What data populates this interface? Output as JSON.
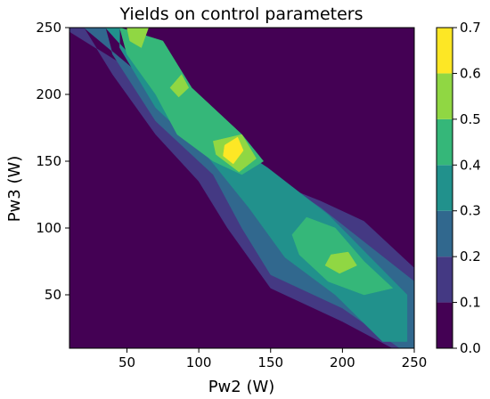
{
  "chart_data": {
    "type": "contourf",
    "title": "Yields on control parameters",
    "xlabel": "Pw2 (W)",
    "ylabel": "Pw3 (W)",
    "xlim": [
      10,
      250
    ],
    "ylim": [
      10,
      250
    ],
    "xticks": [
      50,
      100,
      150,
      200,
      250
    ],
    "yticks": [
      50,
      100,
      150,
      200,
      250
    ],
    "colorbar": {
      "levels": [
        0.0,
        0.1,
        0.2,
        0.3,
        0.4,
        0.5,
        0.6,
        0.7
      ],
      "tick_labels": [
        "0.0",
        "0.1",
        "0.2",
        "0.3",
        "0.4",
        "0.5",
        "0.6",
        "0.7"
      ],
      "colors": [
        "#440154",
        "#443983",
        "#31688e",
        "#21918c",
        "#35b779",
        "#90d743",
        "#fde725"
      ]
    },
    "regions": [
      {
        "level": 1,
        "points": [
          [
            10,
            250
          ],
          [
            10,
            247
          ],
          [
            80,
            200
          ],
          [
            150,
            135
          ],
          [
            185,
            120
          ],
          [
            215,
            105
          ],
          [
            250,
            70
          ],
          [
            250,
            10
          ],
          [
            235,
            10
          ],
          [
            200,
            30
          ],
          [
            150,
            55
          ],
          [
            120,
            100
          ],
          [
            100,
            135
          ],
          [
            70,
            170
          ],
          [
            40,
            215
          ],
          [
            20,
            250
          ]
        ]
      },
      {
        "level": 2,
        "points": [
          [
            20,
            250
          ],
          [
            70,
            205
          ],
          [
            150,
            140
          ],
          [
            185,
            115
          ],
          [
            250,
            60
          ],
          [
            250,
            10
          ],
          [
            240,
            10
          ],
          [
            200,
            40
          ],
          [
            150,
            65
          ],
          [
            130,
            100
          ],
          [
            110,
            140
          ],
          [
            70,
            180
          ],
          [
            40,
            230
          ],
          [
            35,
            250
          ]
        ]
      },
      {
        "level": 3,
        "points": [
          [
            35,
            250
          ],
          [
            85,
            190
          ],
          [
            148,
            145
          ],
          [
            190,
            110
          ],
          [
            245,
            50
          ],
          [
            245,
            15
          ],
          [
            228,
            15
          ],
          [
            195,
            50
          ],
          [
            160,
            78
          ],
          [
            135,
            115
          ],
          [
            105,
            155
          ],
          [
            70,
            190
          ],
          [
            45,
            235
          ],
          [
            45,
            250
          ]
        ]
      },
      {
        "level": 4,
        "points": [
          [
            45,
            250
          ],
          [
            75,
            240
          ],
          [
            95,
            205
          ],
          [
            130,
            170
          ],
          [
            145,
            150
          ],
          [
            130,
            140
          ],
          [
            110,
            150
          ],
          [
            85,
            170
          ],
          [
            70,
            200
          ],
          [
            50,
            230
          ]
        ]
      },
      {
        "level": 4,
        "points": [
          [
            165,
            95
          ],
          [
            175,
            108
          ],
          [
            195,
            100
          ],
          [
            215,
            75
          ],
          [
            235,
            55
          ],
          [
            215,
            50
          ],
          [
            190,
            60
          ],
          [
            170,
            80
          ]
        ]
      },
      {
        "level": 5,
        "points": [
          [
            50,
            250
          ],
          [
            65,
            250
          ],
          [
            60,
            235
          ],
          [
            52,
            240
          ]
        ]
      },
      {
        "level": 5,
        "points": [
          [
            80,
            205
          ],
          [
            88,
            215
          ],
          [
            93,
            205
          ],
          [
            86,
            198
          ]
        ]
      },
      {
        "level": 5,
        "points": [
          [
            110,
            165
          ],
          [
            130,
            170
          ],
          [
            140,
            152
          ],
          [
            128,
            142
          ],
          [
            112,
            155
          ]
        ]
      },
      {
        "level": 5,
        "points": [
          [
            192,
            80
          ],
          [
            204,
            82
          ],
          [
            210,
            72
          ],
          [
            198,
            66
          ],
          [
            188,
            72
          ]
        ]
      },
      {
        "level": 6,
        "points": [
          [
            118,
            162
          ],
          [
            127,
            168
          ],
          [
            131,
            158
          ],
          [
            124,
            148
          ],
          [
            117,
            154
          ]
        ]
      }
    ]
  }
}
